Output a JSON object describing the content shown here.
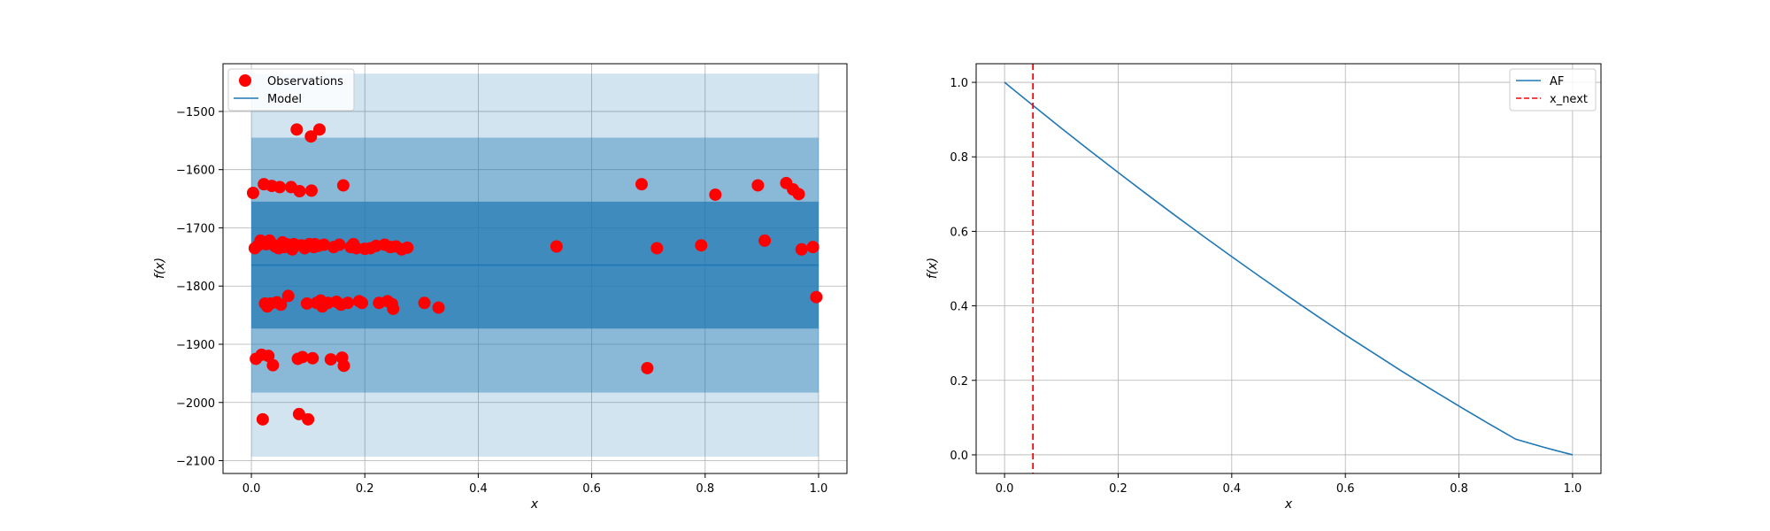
{
  "figure": {
    "background": "#ffffff"
  },
  "chart_data": [
    {
      "type": "scatter",
      "title": "",
      "xlabel": "x",
      "ylabel": "f(x)",
      "xlim": [
        -0.05,
        1.05
      ],
      "ylim": [
        -2122,
        -1418
      ],
      "xticks": [
        0.0,
        0.2,
        0.4,
        0.6,
        0.8,
        1.0
      ],
      "xtick_labels": [
        "0.0",
        "0.2",
        "0.4",
        "0.6",
        "0.8",
        "1.0"
      ],
      "yticks": [
        -2100,
        -2000,
        -1900,
        -1800,
        -1700,
        -1600,
        -1500
      ],
      "ytick_labels": [
        "−2100",
        "−2000",
        "−1900",
        "−1800",
        "−1700",
        "−1600",
        "−1500"
      ],
      "grid": true,
      "legend_position": "top-left",
      "legend": [
        "Observations",
        "Model"
      ],
      "bands": [
        {
          "label": "3 sigma",
          "lower": -2093,
          "upper": -1435,
          "color": "#1f77b4",
          "opacity": 0.2
        },
        {
          "label": "2 sigma",
          "lower": -1983,
          "upper": -1545,
          "color": "#1f77b4",
          "opacity": 0.4
        },
        {
          "label": "1 sigma",
          "lower": -1873,
          "upper": -1655,
          "color": "#1f77b4",
          "opacity": 0.7
        }
      ],
      "band_x": [
        0.0,
        1.0
      ],
      "model": {
        "name": "Model",
        "color": "#1f77b4",
        "x": [
          0.0,
          1.0
        ],
        "y": [
          -1764,
          -1764
        ]
      },
      "observations": {
        "name": "Observations",
        "color": "#ff0000",
        "points": [
          [
            0.003,
            -1640
          ],
          [
            0.006,
            -1735
          ],
          [
            0.008,
            -1925
          ],
          [
            0.012,
            -1730
          ],
          [
            0.016,
            -1722
          ],
          [
            0.018,
            -1918
          ],
          [
            0.02,
            -2029
          ],
          [
            0.022,
            -1625
          ],
          [
            0.024,
            -1830
          ],
          [
            0.026,
            -1728
          ],
          [
            0.028,
            -1835
          ],
          [
            0.03,
            -1920
          ],
          [
            0.032,
            -1722
          ],
          [
            0.034,
            -1830
          ],
          [
            0.036,
            -1628
          ],
          [
            0.038,
            -1936
          ],
          [
            0.04,
            -1730
          ],
          [
            0.042,
            -1732
          ],
          [
            0.045,
            -1828
          ],
          [
            0.048,
            -1735
          ],
          [
            0.05,
            -1630
          ],
          [
            0.052,
            -1832
          ],
          [
            0.055,
            -1725
          ],
          [
            0.058,
            -1733
          ],
          [
            0.062,
            -1728
          ],
          [
            0.065,
            -1817
          ],
          [
            0.068,
            -1731
          ],
          [
            0.07,
            -1630
          ],
          [
            0.072,
            -1737
          ],
          [
            0.075,
            -1728
          ],
          [
            0.08,
            -1531
          ],
          [
            0.082,
            -1925
          ],
          [
            0.084,
            -2020
          ],
          [
            0.085,
            -1637
          ],
          [
            0.088,
            -1730
          ],
          [
            0.09,
            -1922
          ],
          [
            0.094,
            -1735
          ],
          [
            0.098,
            -1830
          ],
          [
            0.1,
            -2029
          ],
          [
            0.102,
            -1728
          ],
          [
            0.105,
            -1543
          ],
          [
            0.106,
            -1636
          ],
          [
            0.108,
            -1924
          ],
          [
            0.11,
            -1733
          ],
          [
            0.112,
            -1728
          ],
          [
            0.115,
            -1829
          ],
          [
            0.118,
            -1731
          ],
          [
            0.12,
            -1531
          ],
          [
            0.122,
            -1825
          ],
          [
            0.125,
            -1835
          ],
          [
            0.128,
            -1729
          ],
          [
            0.135,
            -1829
          ],
          [
            0.14,
            -1926
          ],
          [
            0.145,
            -1733
          ],
          [
            0.15,
            -1827
          ],
          [
            0.155,
            -1729
          ],
          [
            0.158,
            -1832
          ],
          [
            0.16,
            -1923
          ],
          [
            0.162,
            -1627
          ],
          [
            0.163,
            -1937
          ],
          [
            0.17,
            -1829
          ],
          [
            0.175,
            -1733
          ],
          [
            0.18,
            -1728
          ],
          [
            0.185,
            -1735
          ],
          [
            0.19,
            -1826
          ],
          [
            0.195,
            -1829
          ],
          [
            0.2,
            -1736
          ],
          [
            0.21,
            -1735
          ],
          [
            0.22,
            -1731
          ],
          [
            0.225,
            -1829
          ],
          [
            0.235,
            -1729
          ],
          [
            0.24,
            -1826
          ],
          [
            0.245,
            -1733
          ],
          [
            0.248,
            -1831
          ],
          [
            0.25,
            -1839
          ],
          [
            0.255,
            -1732
          ],
          [
            0.265,
            -1737
          ],
          [
            0.275,
            -1734
          ],
          [
            0.305,
            -1829
          ],
          [
            0.33,
            -1837
          ],
          [
            0.538,
            -1732
          ],
          [
            0.688,
            -1625
          ],
          [
            0.698,
            -1941
          ],
          [
            0.715,
            -1735
          ],
          [
            0.793,
            -1730
          ],
          [
            0.818,
            -1643
          ],
          [
            0.893,
            -1627
          ],
          [
            0.905,
            -1722
          ],
          [
            0.943,
            -1623
          ],
          [
            0.955,
            -1634
          ],
          [
            0.965,
            -1642
          ],
          [
            0.97,
            -1737
          ],
          [
            0.99,
            -1733
          ],
          [
            0.996,
            -1819
          ]
        ]
      }
    },
    {
      "type": "line",
      "title": "",
      "xlabel": "x",
      "ylabel": "f(x)",
      "xlim": [
        -0.05,
        1.05
      ],
      "ylim": [
        -0.05,
        1.05
      ],
      "xticks": [
        0.0,
        0.2,
        0.4,
        0.6,
        0.8,
        1.0
      ],
      "xtick_labels": [
        "0.0",
        "0.2",
        "0.4",
        "0.6",
        "0.8",
        "1.0"
      ],
      "yticks": [
        0.0,
        0.2,
        0.4,
        0.6,
        0.8,
        1.0
      ],
      "ytick_labels": [
        "0.0",
        "0.2",
        "0.4",
        "0.6",
        "0.8",
        "1.0"
      ],
      "grid": true,
      "legend_position": "top-right",
      "legend": [
        "AF",
        "x_next"
      ],
      "series": [
        {
          "name": "AF",
          "color": "#1f77b4",
          "x": [
            0.0,
            0.05,
            0.1,
            0.15,
            0.2,
            0.25,
            0.3,
            0.35,
            0.4,
            0.45,
            0.5,
            0.55,
            0.6,
            0.65,
            0.7,
            0.75,
            0.8,
            0.85,
            0.9,
            0.95,
            1.0
          ],
          "y": [
            1.0,
            0.938,
            0.877,
            0.817,
            0.758,
            0.7,
            0.643,
            0.587,
            0.532,
            0.478,
            0.425,
            0.373,
            0.322,
            0.273,
            0.224,
            0.177,
            0.131,
            0.086,
            0.042,
            0.02,
            0.0
          ]
        }
      ],
      "vline": {
        "name": "x_next",
        "x": 0.05,
        "color": "#ff0000",
        "style": "dashed"
      }
    }
  ]
}
